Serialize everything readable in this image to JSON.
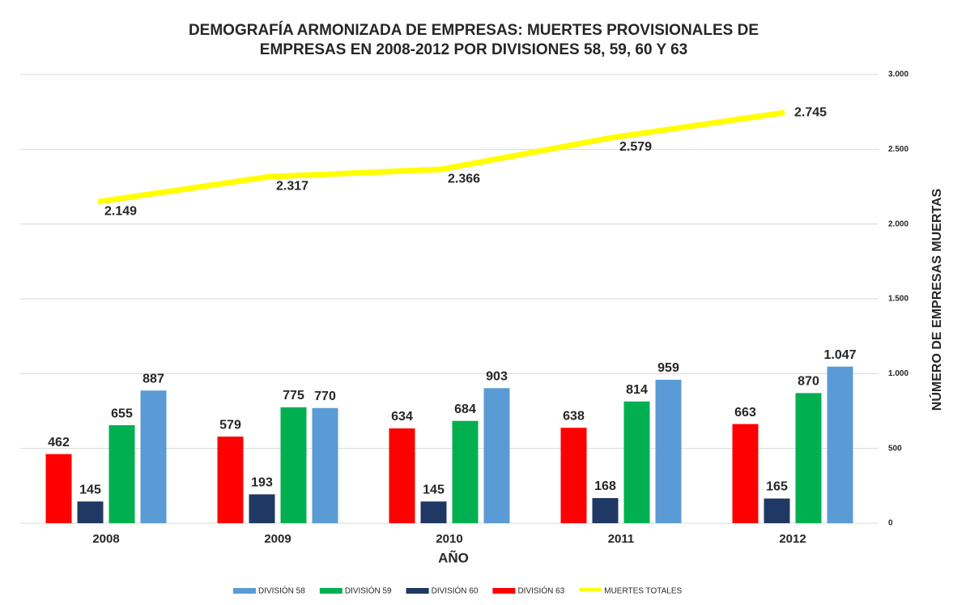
{
  "chart_data": {
    "type": "bar",
    "title": "DEMOGRAFÍA ARMONIZADA DE EMPRESAS: MUERTES PROVISIONALES DE",
    "subtitle": "EMPRESAS EN 2008-2012 POR DIVISIONES 58, 59, 60 Y 63",
    "x_label": "AÑO",
    "y_label": "NÚMERO DE EMPRESAS MUERTAS",
    "categories": [
      "2008",
      "2009",
      "2010",
      "2011",
      "2012"
    ],
    "series": [
      {
        "name": "DIVISIÓN 58",
        "color": "#5b9bd5",
        "values": [
          887,
          770,
          903,
          959,
          1047
        ],
        "value_labels": [
          "887",
          "770",
          "903",
          "959",
          "1.047"
        ]
      },
      {
        "name": "DIVISIÓN 59",
        "color": "#00b050",
        "values": [
          655,
          775,
          684,
          814,
          870
        ]
      },
      {
        "name": "DIVISIÓN 60",
        "color": "#1f3864",
        "values": [
          145,
          193,
          145,
          168,
          165
        ]
      },
      {
        "name": "DIVISIÓN 63",
        "color": "#ff0000",
        "values": [
          462,
          579,
          634,
          638,
          663
        ]
      },
      {
        "name": "MUERTES TOTALES",
        "color": "#ffff00",
        "type": "line",
        "values": [
          2149,
          2317,
          2366,
          2579,
          2745
        ],
        "value_labels": [
          "2.149",
          "2.317",
          "2.366",
          "2.579",
          "2.745"
        ]
      }
    ],
    "ylim": [
      0,
      3000
    ],
    "yticks": [
      0,
      500,
      {
        "value": 1000,
        "label": "1.000"
      },
      {
        "value": 1500,
        "label": "1.500"
      },
      {
        "value": 2000,
        "label": "2.000"
      },
      {
        "value": 2500,
        "label": "2.500"
      },
      {
        "value": 3000,
        "label": "3.000"
      }
    ],
    "grid": true,
    "y_axis_side": "right",
    "legend": "bottom"
  }
}
